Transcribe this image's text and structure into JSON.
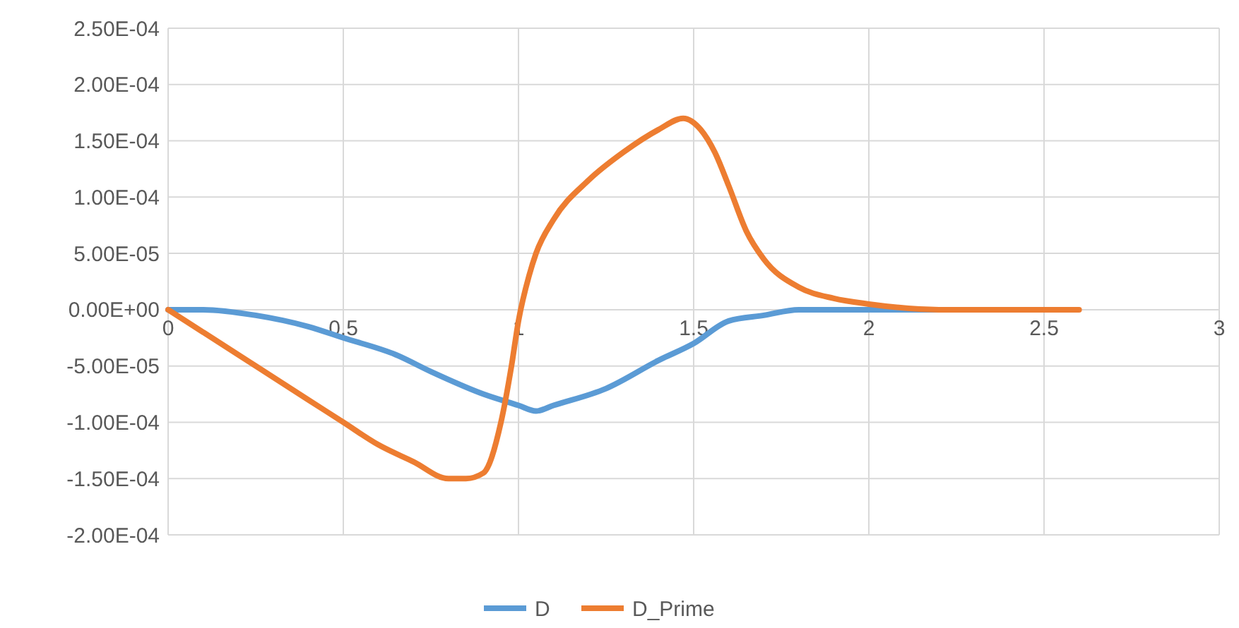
{
  "chart_data": {
    "type": "line",
    "xlim": [
      0,
      3
    ],
    "xticks": [
      0,
      0.5,
      1,
      1.5,
      2,
      2.5,
      3
    ],
    "ylim": [
      -0.0002,
      0.00025
    ],
    "yticks": [
      {
        "value": -0.0002,
        "label": "-2.00E-04"
      },
      {
        "value": -0.00015,
        "label": "-1.50E-04"
      },
      {
        "value": -0.0001,
        "label": "-1.00E-04"
      },
      {
        "value": -5e-05,
        "label": "-5.00E-05"
      },
      {
        "value": 0,
        "label": "0.00E+00"
      },
      {
        "value": 5e-05,
        "label": "5.00E-05"
      },
      {
        "value": 0.0001,
        "label": "1.00E-04"
      },
      {
        "value": 0.00015,
        "label": "1.50E-04"
      },
      {
        "value": 0.0002,
        "label": "2.00E-04"
      },
      {
        "value": 0.00025,
        "label": "2.50E-04"
      }
    ],
    "grid": true,
    "legend": "bottom",
    "line_style": "solid",
    "series": [
      {
        "name": "D",
        "color": "#5b9bd5",
        "x": [
          0,
          0.1,
          0.25,
          0.4,
          0.5,
          0.65,
          0.75,
          0.9,
          1.0,
          1.05,
          1.1,
          1.25,
          1.4,
          1.5,
          1.6,
          1.7,
          1.8,
          1.9,
          2.0,
          2.2
        ],
        "values": [
          0,
          0,
          -5e-06,
          -1.5e-05,
          -2.5e-05,
          -4e-05,
          -5.5e-05,
          -7.5e-05,
          -8.5e-05,
          -9e-05,
          -8.5e-05,
          -7e-05,
          -4.5e-05,
          -3e-05,
          -1e-05,
          -5e-06,
          0,
          0,
          0,
          0
        ]
      },
      {
        "name": "D_Prime",
        "color": "#ed7d31",
        "x": [
          0,
          0.1,
          0.25,
          0.4,
          0.5,
          0.6,
          0.7,
          0.8,
          0.85,
          0.9,
          0.95,
          0.98,
          1.0,
          1.03,
          1.05,
          1.1,
          1.2,
          1.3,
          1.4,
          1.47,
          1.52,
          1.56,
          1.6,
          1.65,
          1.7,
          1.8,
          1.9,
          2.0,
          2.2,
          2.4,
          2.6
        ],
        "values": [
          0,
          -2e-05,
          -5e-05,
          -8e-05,
          -0.0001,
          -0.00012,
          -0.000135,
          -0.00015,
          -0.00015,
          -0.000145,
          -0.0001,
          -5e-05,
          -1e-05,
          3e-05,
          5e-05,
          8e-05,
          0.000115,
          0.00014,
          0.00016,
          0.00017,
          0.00016,
          0.00014,
          0.00011,
          7e-05,
          4.5e-05,
          2e-05,
          1e-05,
          5e-06,
          0,
          0,
          0
        ]
      }
    ]
  }
}
